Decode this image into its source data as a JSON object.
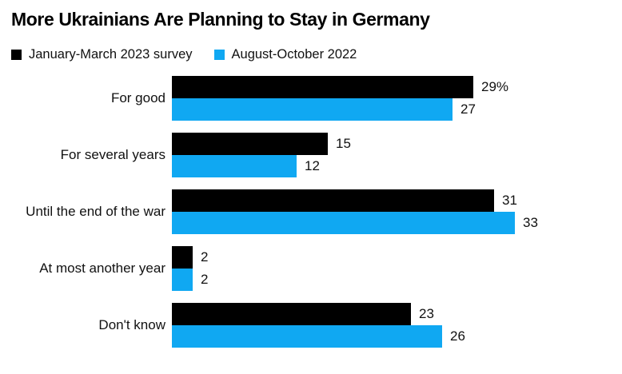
{
  "title": "More Ukrainians Are Planning to Stay in Germany",
  "legend": {
    "items": [
      {
        "label": "January-March 2023 survey",
        "color": "#000000"
      },
      {
        "label": "August-October 2022",
        "color": "#10a8f2"
      }
    ]
  },
  "chart_data": {
    "type": "bar",
    "orientation": "horizontal",
    "title": "More Ukrainians Are Planning to Stay in Germany",
    "categories": [
      "For good",
      "For several years",
      "Until the end of the war",
      "At most another year",
      "Don't know"
    ],
    "series": [
      {
        "name": "January-March 2023 survey",
        "color": "#000000",
        "values": [
          29,
          15,
          31,
          2,
          23
        ],
        "labels": [
          "29%",
          "15",
          "31",
          "2",
          "23"
        ]
      },
      {
        "name": "August-October 2022",
        "color": "#10a8f2",
        "values": [
          27,
          12,
          33,
          2,
          26
        ],
        "labels": [
          "27",
          "12",
          "33",
          "2",
          "26"
        ]
      }
    ],
    "xlim": [
      0,
      33
    ],
    "legend_position": "top-left",
    "grid": false,
    "value_labels": "outside-end"
  }
}
